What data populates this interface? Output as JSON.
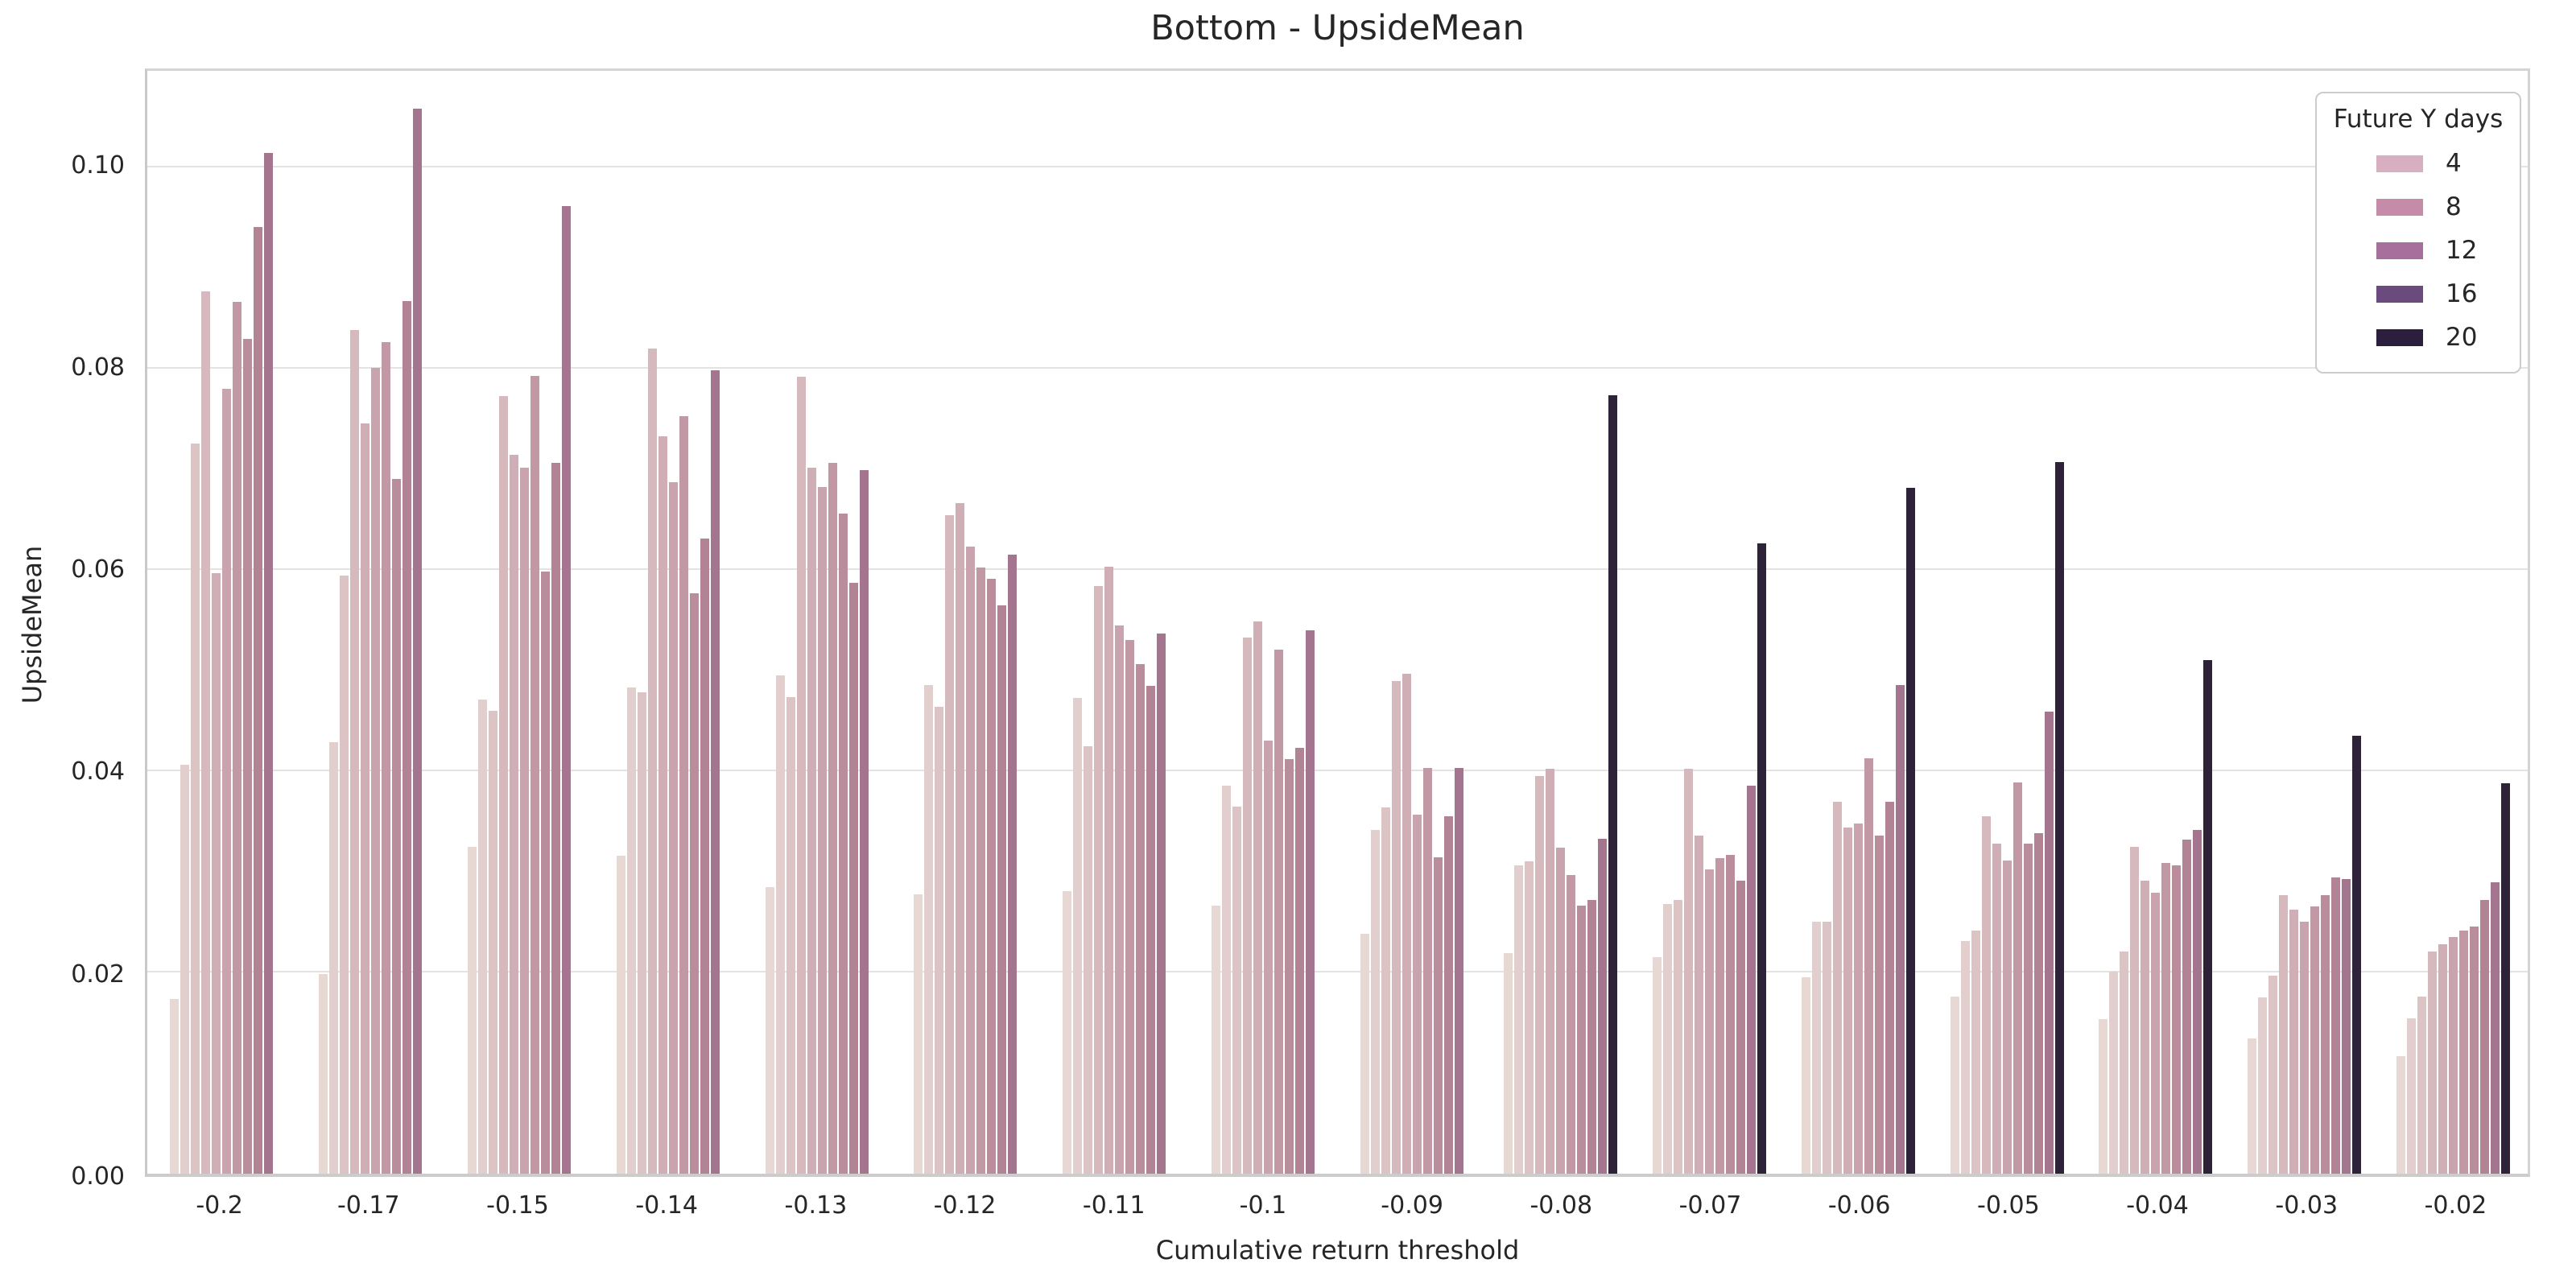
{
  "chart_data": {
    "type": "bar",
    "title": "Bottom - UpsideMean",
    "xlabel": "Cumulative return threshold",
    "ylabel": "UpsideMean",
    "ylim": [
      0,
      0.1096
    ],
    "yticks": [
      0,
      0.02,
      0.04,
      0.06,
      0.08,
      0.1
    ],
    "ytick_labels": [
      "0.00",
      "0.02",
      "0.04",
      "0.06",
      "0.08",
      "0.10"
    ],
    "grid": "horizontal-only",
    "background": "#ffffff",
    "grid_color": "#e3e3e3",
    "categories": [
      "-0.2",
      "-0.17",
      "-0.15",
      "-0.14",
      "-0.13",
      "-0.12",
      "-0.11",
      "-0.1",
      "-0.09",
      "-0.08",
      "-0.07",
      "-0.06",
      "-0.05",
      "-0.04",
      "-0.03",
      "-0.02"
    ],
    "bar_palette": [
      "#e7d8d3",
      "#e1cecd",
      "#dcc4c5",
      "#d5b9bd",
      "#d0aeb6",
      "#c9a3ad",
      "#c298a5",
      "#ba8d9d",
      "#b28295",
      "#a4758f",
      "#2e2239"
    ],
    "groups": [
      {
        "category": "-0.2",
        "values": [
          0.0173,
          0.0404,
          0.0722,
          0.0872,
          0.0594,
          0.0776,
          0.0862,
          0.0825,
          0.0936,
          0.1009
        ]
      },
      {
        "category": "-0.17",
        "values": [
          0.0197,
          0.0427,
          0.0591,
          0.0834,
          0.0742,
          0.0797,
          0.0822,
          0.0687,
          0.0863,
          0.1053
        ]
      },
      {
        "category": "-0.15",
        "values": [
          0.0323,
          0.0469,
          0.0458,
          0.0769,
          0.0711,
          0.0698,
          0.0789,
          0.0595,
          0.0703,
          0.0957
        ]
      },
      {
        "category": "-0.14",
        "values": [
          0.0314,
          0.0481,
          0.0476,
          0.0816,
          0.0729,
          0.0684,
          0.0749,
          0.0574,
          0.0628,
          0.0794
        ]
      },
      {
        "category": "-0.13",
        "values": [
          0.0283,
          0.0493,
          0.0471,
          0.0788,
          0.0698,
          0.0679,
          0.0703,
          0.0653,
          0.0584,
          0.0696
        ]
      },
      {
        "category": "-0.12",
        "values": [
          0.0276,
          0.0483,
          0.0462,
          0.0651,
          0.0663,
          0.062,
          0.0599,
          0.0588,
          0.0562,
          0.0612
        ]
      },
      {
        "category": "-0.11",
        "values": [
          0.0279,
          0.047,
          0.0423,
          0.0581,
          0.06,
          0.0542,
          0.0528,
          0.0504,
          0.0482,
          0.0534
        ]
      },
      {
        "category": "-0.1",
        "values": [
          0.0265,
          0.0384,
          0.0363,
          0.053,
          0.0546,
          0.0428,
          0.0518,
          0.041,
          0.0421,
          0.0537
        ]
      },
      {
        "category": "-0.09",
        "values": [
          0.0237,
          0.034,
          0.0362,
          0.0487,
          0.0494,
          0.0355,
          0.0401,
          0.0313,
          0.0353,
          0.0401
        ]
      },
      {
        "category": "-0.08",
        "values": [
          0.0218,
          0.0305,
          0.0309,
          0.0393,
          0.04,
          0.0322,
          0.0295,
          0.0265,
          0.0271,
          0.0331,
          0.077
        ]
      },
      {
        "category": "-0.07",
        "values": [
          0.0214,
          0.0267,
          0.0271,
          0.04,
          0.0334,
          0.0301,
          0.0312,
          0.0315,
          0.029,
          0.0384,
          0.0623
        ]
      },
      {
        "category": "-0.06",
        "values": [
          0.0194,
          0.0249,
          0.0249,
          0.0368,
          0.0342,
          0.0346,
          0.0411,
          0.0334,
          0.0368,
          0.0483,
          0.0678
        ]
      },
      {
        "category": "-0.05",
        "values": [
          0.0175,
          0.023,
          0.024,
          0.0353,
          0.0326,
          0.031,
          0.0387,
          0.0326,
          0.0337,
          0.0457,
          0.0704
        ]
      },
      {
        "category": "-0.04",
        "values": [
          0.0153,
          0.02,
          0.022,
          0.0323,
          0.029,
          0.0278,
          0.0307,
          0.0305,
          0.033,
          0.034,
          0.0508
        ]
      },
      {
        "category": "-0.03",
        "values": [
          0.0134,
          0.0174,
          0.0196,
          0.0275,
          0.0261,
          0.0249,
          0.0264,
          0.0275,
          0.0293,
          0.0291,
          0.0433
        ]
      },
      {
        "category": "-0.02",
        "values": [
          0.0116,
          0.0154,
          0.0175,
          0.022,
          0.0227,
          0.0234,
          0.024,
          0.0244,
          0.0271,
          0.0288,
          0.0386
        ]
      }
    ],
    "legend": {
      "title": "Future Y days",
      "position": "upper-right",
      "entries": [
        {
          "label": "4",
          "color": "#d8afc0"
        },
        {
          "label": "8",
          "color": "#c68ba9"
        },
        {
          "label": "12",
          "color": "#a76f9b"
        },
        {
          "label": "16",
          "color": "#6b4b7e"
        },
        {
          "label": "20",
          "color": "#2b1f3d"
        }
      ]
    }
  }
}
